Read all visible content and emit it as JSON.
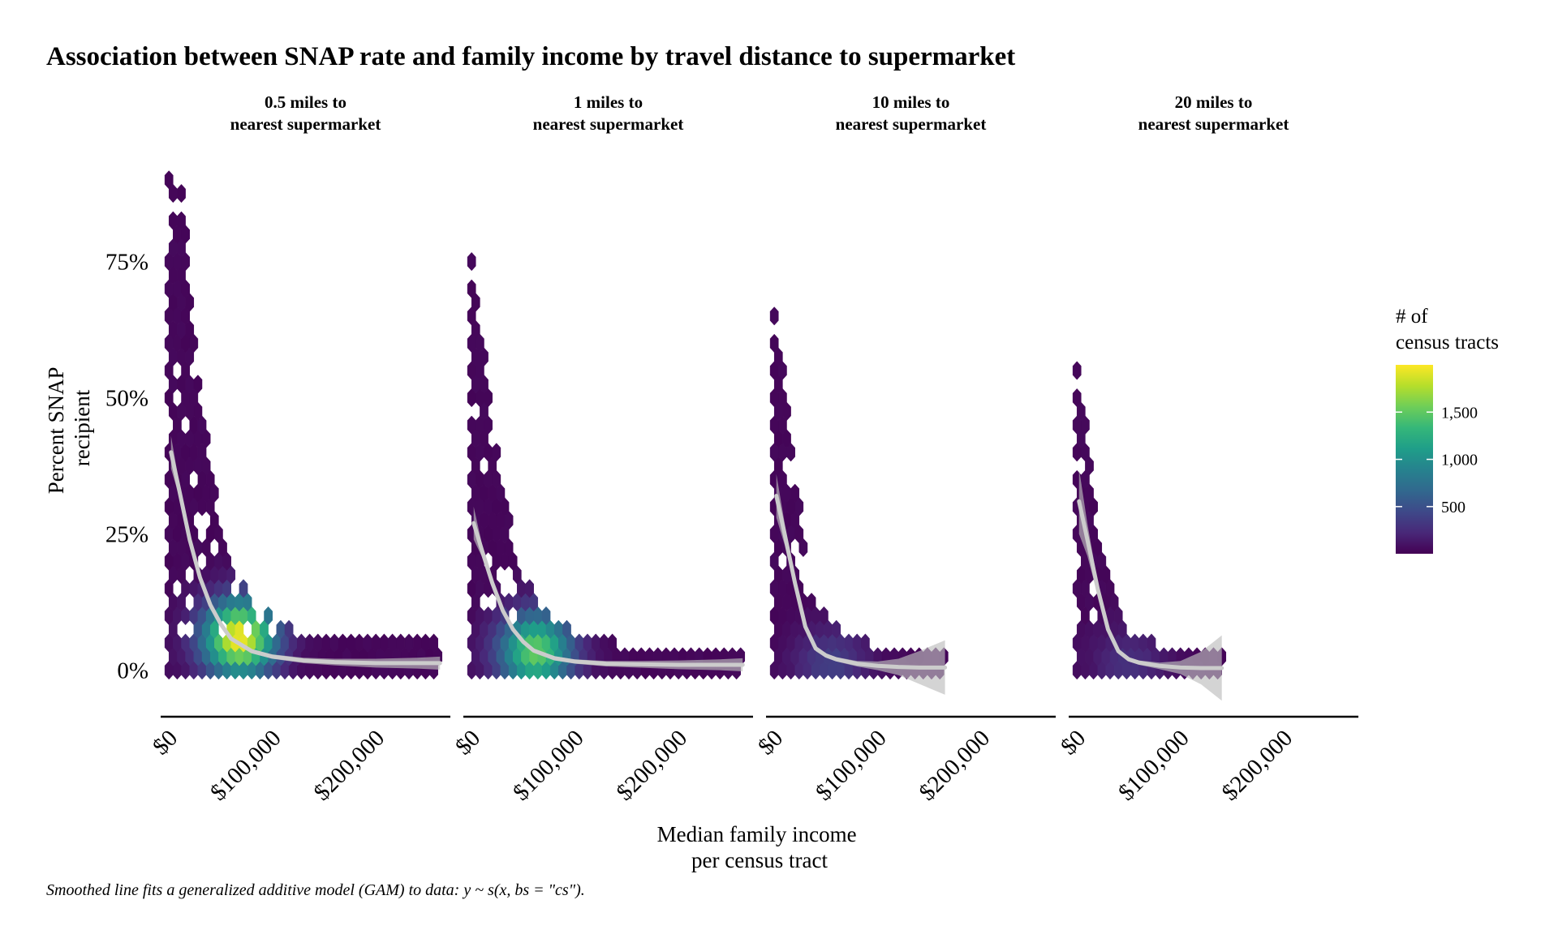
{
  "chart_data": {
    "type": "hexbin",
    "title": "Association between SNAP rate and family income by travel distance to supermarket",
    "caption": "Smoothed line fits a generalized additive model (GAM) to data: y ~ s(x, bs = \"cs\").",
    "xlabel": "Median family income\nper census tract",
    "ylabel": "Percent SNAP\nrecipient",
    "xlim": [
      -8000,
      272000
    ],
    "ylim": [
      -0.06,
      0.98
    ],
    "x_ticks": [
      0,
      100000,
      200000
    ],
    "x_tick_labels": [
      "$0",
      "$100,000",
      "$200,000"
    ],
    "y_ticks": [
      0,
      0.25,
      0.5,
      0.75
    ],
    "y_tick_labels": [
      "0%",
      "25%",
      "50%",
      "75%"
    ],
    "legend": {
      "title": "# of\ncensus tracts",
      "position": "right",
      "range": [
        1,
        2000
      ],
      "ticks": [
        500,
        1000,
        1500
      ],
      "tick_labels": [
        "500",
        "1,000",
        "1,500"
      ],
      "colors": [
        "#440154",
        "#482878",
        "#3e4989",
        "#31688e",
        "#26828e",
        "#1f9e89",
        "#35b779",
        "#6ece58",
        "#b5de2b",
        "#fde725"
      ]
    },
    "colors": {
      "smooth_line": "#cccccc",
      "ribbon": "#bdbdbd",
      "axis": "#000000"
    },
    "facets": [
      {
        "label": "0.5 miles to\nnearest supermarket",
        "x_max": 262000,
        "smooth": {
          "x": [
            2000,
            10000,
            20000,
            30000,
            40000,
            50000,
            60000,
            80000,
            100000,
            130000,
            160000,
            200000,
            240000,
            262000
          ],
          "y": [
            0.4,
            0.33,
            0.24,
            0.17,
            0.12,
            0.085,
            0.058,
            0.035,
            0.025,
            0.018,
            0.015,
            0.013,
            0.013,
            0.013
          ]
        },
        "ribbon_halfwidth": [
          0.03,
          0.012,
          0.006,
          0.005,
          0.004,
          0.004,
          0.004,
          0.004,
          0.004,
          0.005,
          0.006,
          0.008,
          0.01,
          0.012
        ],
        "peak": {
          "x": 68000,
          "y": 0.06,
          "count": 1950
        }
      },
      {
        "label": "1 miles to\nnearest supermarket",
        "x_max": 262000,
        "smooth": {
          "x": [
            2000,
            10000,
            20000,
            30000,
            40000,
            50000,
            60000,
            80000,
            100000,
            130000,
            160000,
            200000,
            240000,
            262000
          ],
          "y": [
            0.27,
            0.22,
            0.16,
            0.11,
            0.075,
            0.052,
            0.036,
            0.022,
            0.016,
            0.012,
            0.011,
            0.01,
            0.01,
            0.01
          ]
        },
        "ribbon_halfwidth": [
          0.03,
          0.012,
          0.006,
          0.005,
          0.004,
          0.004,
          0.004,
          0.004,
          0.004,
          0.005,
          0.006,
          0.008,
          0.01,
          0.012
        ],
        "peak": {
          "x": 62000,
          "y": 0.035,
          "count": 1500
        }
      },
      {
        "label": "10 miles to\nnearest supermarket",
        "x_max": 165000,
        "smooth": {
          "x": [
            2000,
            10000,
            20000,
            30000,
            40000,
            50000,
            60000,
            80000,
            100000,
            120000,
            140000,
            165000
          ],
          "y": [
            0.32,
            0.25,
            0.16,
            0.08,
            0.04,
            0.027,
            0.02,
            0.012,
            0.008,
            0.006,
            0.005,
            0.005
          ]
        },
        "ribbon_halfwidth": [
          0.04,
          0.02,
          0.01,
          0.006,
          0.005,
          0.004,
          0.004,
          0.005,
          0.008,
          0.015,
          0.03,
          0.05
        ],
        "peak": {
          "x": 55000,
          "y": 0.01,
          "count": 350
        }
      },
      {
        "label": "20 miles to\nnearest supermarket",
        "x_max": 140000,
        "smooth": {
          "x": [
            2000,
            10000,
            20000,
            30000,
            40000,
            50000,
            60000,
            80000,
            100000,
            120000,
            140000
          ],
          "y": [
            0.31,
            0.24,
            0.15,
            0.075,
            0.035,
            0.02,
            0.014,
            0.008,
            0.005,
            0.004,
            0.004
          ]
        },
        "ribbon_halfwidth": [
          0.06,
          0.03,
          0.012,
          0.007,
          0.005,
          0.004,
          0.004,
          0.006,
          0.012,
          0.03,
          0.06
        ],
        "peak": {
          "x": 50000,
          "y": 0.01,
          "count": 250
        }
      }
    ]
  }
}
